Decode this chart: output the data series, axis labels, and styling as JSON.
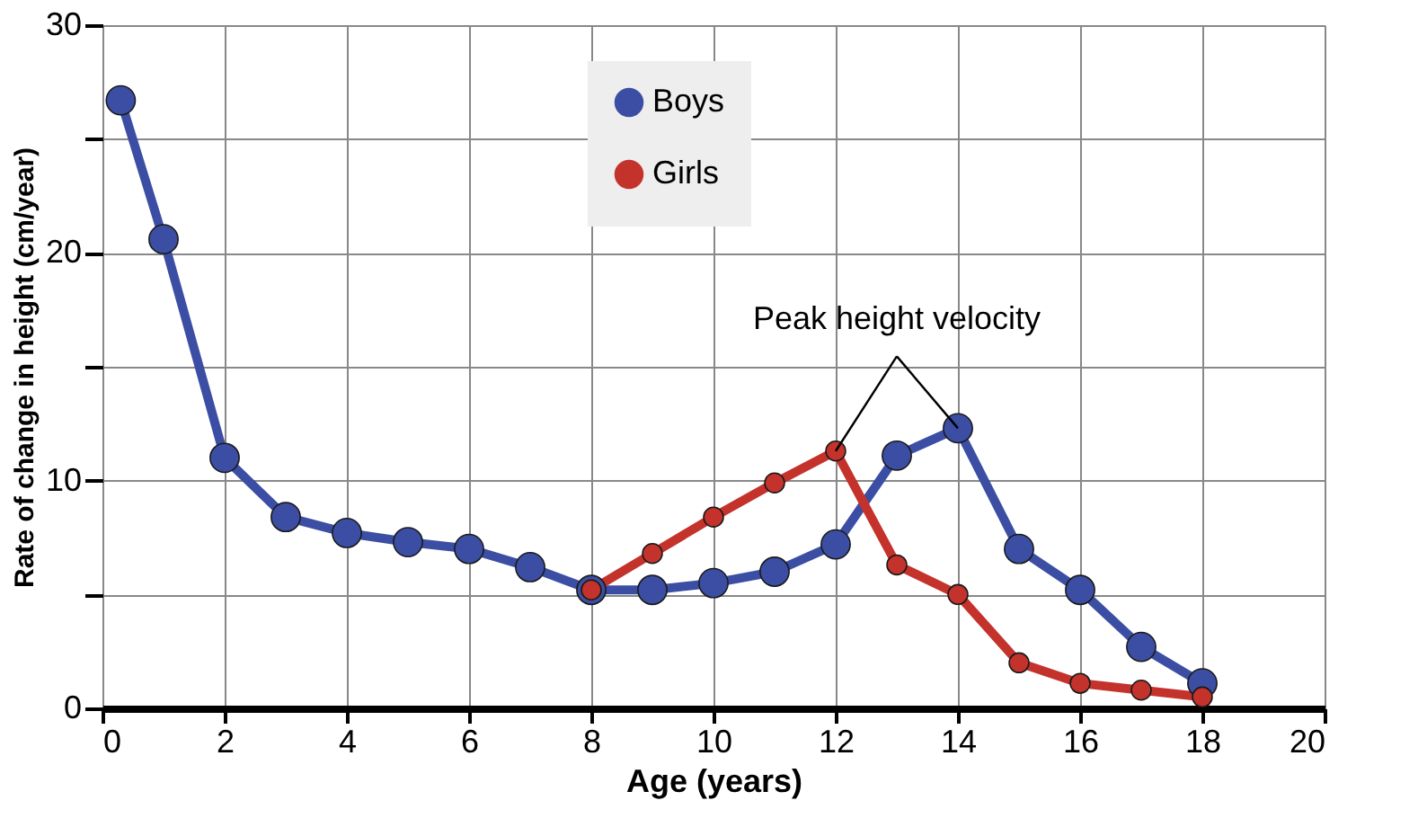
{
  "chart_data": {
    "type": "line",
    "xlabel": "Age (years)",
    "ylabel": "Rate of change in height (cm/year)",
    "series": [
      {
        "name": "Boys",
        "color": "#3b4ea3",
        "x": [
          0.3,
          1,
          2,
          3,
          4,
          5,
          6,
          7,
          8,
          9,
          10,
          11,
          12,
          13,
          14,
          15,
          16,
          17,
          18
        ],
        "values": [
          26.7,
          20.6,
          11.0,
          8.4,
          7.7,
          7.3,
          7.0,
          6.2,
          5.2,
          5.2,
          5.5,
          6.0,
          7.2,
          11.1,
          12.3,
          7.0,
          5.2,
          2.7,
          1.1
        ]
      },
      {
        "name": "Girls",
        "color": "#c4322c",
        "x": [
          8,
          9,
          10,
          11,
          12,
          13,
          14,
          15,
          16,
          17,
          18
        ],
        "values": [
          5.2,
          6.8,
          8.4,
          9.9,
          11.3,
          6.3,
          5.0,
          2.0,
          1.1,
          0.8,
          0.5
        ]
      }
    ],
    "xlim": [
      0,
      20
    ],
    "xticks": [
      0,
      2,
      4,
      6,
      8,
      10,
      12,
      14,
      16,
      18,
      20
    ],
    "ylim": [
      0,
      30
    ],
    "yticks": [
      0,
      {
        "value": 5,
        "label": null
      },
      10,
      {
        "value": 15,
        "label": null
      },
      20,
      {
        "value": 25,
        "label": null
      },
      30
    ],
    "annotations": [
      {
        "text": "Peak height velocity",
        "x": 14,
        "y": 12.3
      }
    ],
    "grid": true,
    "legend": "top",
    "marker": "circle",
    "line_style": "solid"
  }
}
